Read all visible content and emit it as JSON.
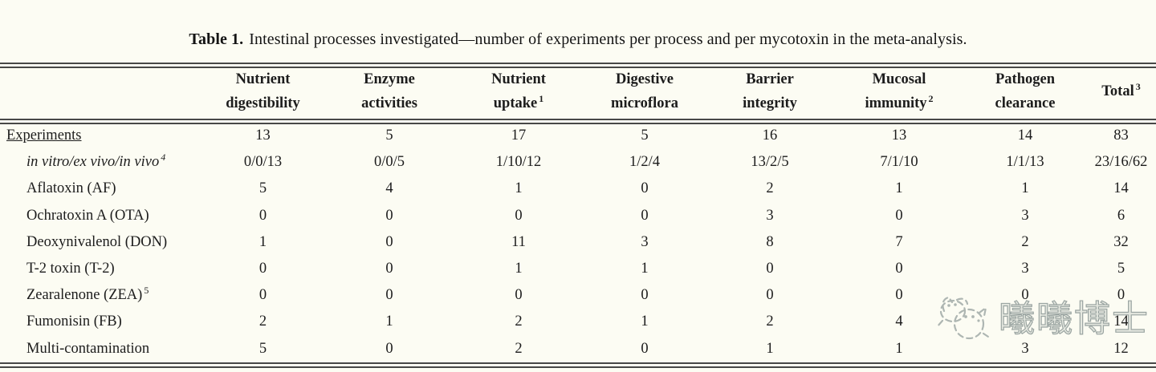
{
  "title": {
    "prefix": "Table 1.",
    "text": "Intestinal processes investigated—number of experiments per process and per mycotoxin in the meta-analysis."
  },
  "table": {
    "columns": [
      {
        "line1": "Nutrient",
        "line2": "digestibility",
        "sup": ""
      },
      {
        "line1": "Enzyme",
        "line2": "activities",
        "sup": ""
      },
      {
        "line1": "Nutrient",
        "line2": "uptake",
        "sup": "1"
      },
      {
        "line1": "Digestive",
        "line2": "microflora",
        "sup": ""
      },
      {
        "line1": "Barrier",
        "line2": "integrity",
        "sup": ""
      },
      {
        "line1": "Mucosal",
        "line2": "immunity",
        "sup": "2"
      },
      {
        "line1": "Pathogen",
        "line2": "clearance",
        "sup": ""
      },
      {
        "line1": "Total",
        "line2": "",
        "sup": "3"
      }
    ],
    "rows": [
      {
        "label": "Experiments",
        "sup": "",
        "style": "underline",
        "values": [
          "13",
          "5",
          "17",
          "5",
          "16",
          "13",
          "14",
          "83"
        ]
      },
      {
        "label": "in vitro/ex vivo/in vivo",
        "sup": "4",
        "style": "italic-indent",
        "values": [
          "0/0/13",
          "0/0/5",
          "1/10/12",
          "1/2/4",
          "13/2/5",
          "7/1/10",
          "1/1/13",
          "23/16/62"
        ]
      },
      {
        "label": "Aflatoxin (AF)",
        "sup": "",
        "style": "indent",
        "values": [
          "5",
          "4",
          "1",
          "0",
          "2",
          "1",
          "1",
          "14"
        ]
      },
      {
        "label": "Ochratoxin A (OTA)",
        "sup": "",
        "style": "indent",
        "values": [
          "0",
          "0",
          "0",
          "0",
          "3",
          "0",
          "3",
          "6"
        ]
      },
      {
        "label": "Deoxynivalenol (DON)",
        "sup": "",
        "style": "indent",
        "values": [
          "1",
          "0",
          "11",
          "3",
          "8",
          "7",
          "2",
          "32"
        ]
      },
      {
        "label": "T-2 toxin (T-2)",
        "sup": "",
        "style": "indent",
        "values": [
          "0",
          "0",
          "1",
          "1",
          "0",
          "0",
          "3",
          "5"
        ]
      },
      {
        "label": "Zearalenone (ZEA)",
        "sup": "5",
        "style": "indent",
        "values": [
          "0",
          "0",
          "0",
          "0",
          "0",
          "0",
          "0",
          "0"
        ]
      },
      {
        "label": "Fumonisin (FB)",
        "sup": "",
        "style": "indent",
        "values": [
          "2",
          "1",
          "2",
          "1",
          "2",
          "4",
          "",
          "14"
        ]
      },
      {
        "label": "Multi-contamination",
        "sup": "",
        "style": "indent",
        "values": [
          "5",
          "0",
          "2",
          "0",
          "1",
          "1",
          "3",
          "12"
        ]
      }
    ]
  },
  "watermark": {
    "text": "曦曦博士",
    "color": "#9ba5a2"
  }
}
